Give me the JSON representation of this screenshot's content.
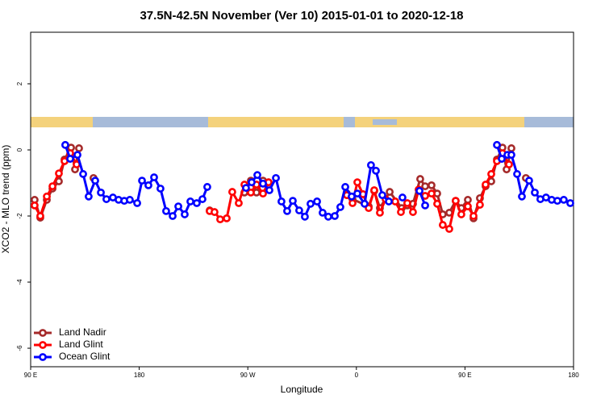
{
  "chart_data": {
    "type": "line",
    "title": "37.5N-42.5N November (Ver 10)   2015-01-01 to 2020-12-18",
    "x_label": "Longitude",
    "y_label": "XCO2 - MLO trend (ppm)",
    "xlim": [
      90,
      540
    ],
    "ylim": [
      -6.56,
      3.56
    ],
    "xticks": [
      {
        "value": 90,
        "label": "90 E"
      },
      180,
      {
        "value": 270,
        "label": "90 W"
      },
      {
        "value": 360,
        "label": "0"
      },
      {
        "value": 450,
        "label": "90 E"
      },
      {
        "value": 540,
        "label": "180"
      }
    ],
    "yticks": [
      -6,
      -4,
      -2,
      0,
      2
    ],
    "legend": "bottom-left",
    "series": [
      {
        "name": "Land Nadir",
        "color": "#a52a2a",
        "x": [
          93.3,
          98.0,
          103.4,
          108.1,
          113.4,
          118.1,
          123.5,
          126.8,
          130.1,
          136,
          142.1,
          200,
          238.4,
          260,
          267.2,
          272.5,
          277.2,
          282.6,
          287.2,
          320,
          352.1,
          356.8,
          370.2,
          374.8,
          379.5,
          387.6,
          397.6,
          402.2,
          406.9,
          412.9,
          417.0,
          422.3,
          427.0,
          431.6,
          437.0,
          442.3,
          447.0,
          452.4,
          457.1,
          462.4,
          467.1,
          471.8,
          476.5,
          481.1,
          484.5,
          488.5,
          494,
          500.5
        ],
        "values": [
          -1.51,
          -2.05,
          -1.51,
          -1.17,
          -0.95,
          -0.29,
          0.07,
          -0.59,
          0.05,
          null,
          -0.85,
          null,
          -1.83,
          null,
          -1.29,
          -0.93,
          -1.29,
          -0.93,
          -0.98,
          null,
          -1.32,
          -1.49,
          -1.71,
          -1.24,
          -1.76,
          -1.27,
          -1.76,
          -1.68,
          -1.63,
          -0.88,
          -1.1,
          -1.07,
          -1.32,
          -1.95,
          -1.9,
          -1.54,
          -1.76,
          -1.51,
          -2.07,
          -1.46,
          -1.1,
          -0.95,
          -0.29,
          0.07,
          -0.59,
          0.05,
          null,
          -0.85
        ]
      },
      {
        "name": "Land Glint",
        "color": "#ff0000",
        "x": [
          93.3,
          98.0,
          103.4,
          108.1,
          113.4,
          118.1,
          122.8,
          128.1,
          200,
          238.4,
          242.4,
          247.1,
          252.5,
          257.1,
          262.5,
          267.2,
          272.5,
          277.2,
          282.6,
          287.2,
          320,
          352.1,
          356.8,
          360.8,
          365.5,
          370.2,
          374.8,
          379.5,
          384.2,
          392.2,
          396.9,
          402.2,
          406.9,
          411.6,
          417.0,
          422.3,
          427.0,
          431.6,
          437.0,
          442.3,
          447.0,
          452.4,
          457.1,
          462.4,
          467.1,
          471.8,
          476.5,
          481.1,
          486.5
        ],
        "values": [
          -1.68,
          -2.0,
          -1.41,
          -1.1,
          -0.71,
          -0.34,
          -0.1,
          -0.44,
          null,
          -1.85,
          -1.88,
          -2.1,
          -2.07,
          -1.27,
          -1.61,
          -1.05,
          -1.29,
          -1.05,
          -1.32,
          -0.98,
          null,
          -1.37,
          -1.61,
          -0.98,
          -1.34,
          -1.76,
          -1.22,
          -1.9,
          -1.49,
          -1.56,
          -1.88,
          -1.61,
          -1.88,
          -1.2,
          -1.39,
          -1.32,
          -1.63,
          -2.27,
          -2.39,
          -1.54,
          -1.95,
          -1.71,
          -2.0,
          -1.66,
          -1.05,
          -0.73,
          -0.34,
          -0.1,
          -0.44
        ]
      },
      {
        "name": "Ocean Glint",
        "color": "#0000ff",
        "x": [
          118.7,
          122.8,
          128.8,
          133.5,
          138.1,
          143.5,
          148.2,
          152.8,
          158.2,
          162.9,
          167.6,
          172.2,
          178.3,
          182.3,
          187.6,
          192.3,
          197.6,
          202.3,
          207.7,
          212.4,
          217.7,
          222.4,
          227.7,
          232.4,
          236.4,
          250,
          268.5,
          273.2,
          277.9,
          282.6,
          287.9,
          293.3,
          297.9,
          302.6,
          307.3,
          312.6,
          317.3,
          322.0,
          327.4,
          332.0,
          336.7,
          342.1,
          346.7,
          350.8,
          356.1,
          360.8,
          366.8,
          372.1,
          376.2,
          381.5,
          386.9,
          392,
          398.2,
          405,
          412.3,
          417.0,
          450,
          476.5,
          480.5,
          485.2,
          488.5,
          493.2,
          497.2,
          503.2,
          507.9,
          512.5,
          517.2,
          521.9,
          526.6,
          531.9,
          537.3
        ],
        "values": [
          0.15,
          -0.27,
          -0.15,
          -0.73,
          -1.41,
          -0.93,
          -1.29,
          -1.49,
          -1.44,
          -1.51,
          -1.54,
          -1.51,
          -1.61,
          -0.93,
          -1.07,
          -0.83,
          -1.17,
          -1.85,
          -2.0,
          -1.71,
          -1.95,
          -1.56,
          -1.61,
          -1.49,
          -1.12,
          null,
          -1.15,
          -0.98,
          -0.76,
          -1.02,
          -1.22,
          -0.85,
          -1.56,
          -1.85,
          -1.54,
          -1.83,
          -2.02,
          -1.63,
          -1.56,
          -1.9,
          -2.02,
          -2.0,
          -1.73,
          -1.12,
          -1.41,
          -1.32,
          -1.63,
          -0.46,
          -0.63,
          -1.37,
          -1.56,
          null,
          -1.44,
          null,
          -1.24,
          -1.68,
          null,
          0.15,
          -0.27,
          -0.15,
          -0.15,
          -0.73,
          -1.41,
          -0.93,
          -1.29,
          -1.49,
          -1.44,
          -1.51,
          -1.54,
          -1.51,
          -1.61
        ]
      }
    ]
  }
}
